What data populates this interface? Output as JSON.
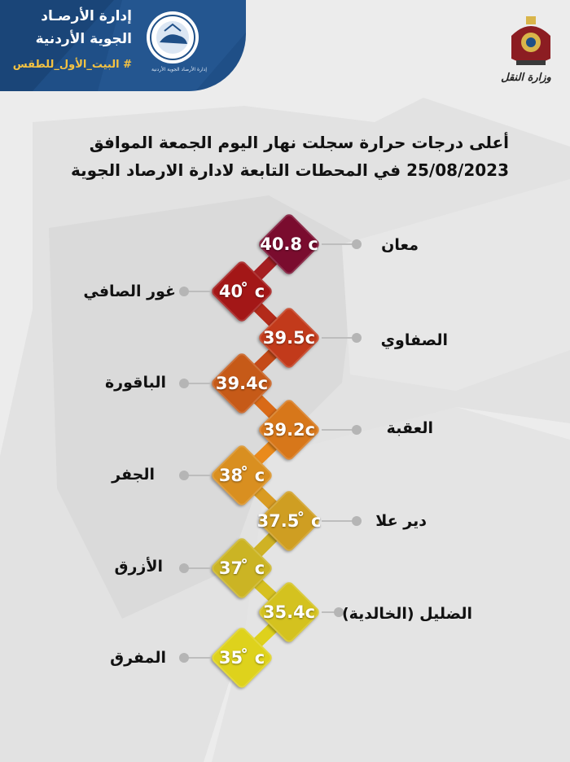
{
  "header": {
    "dept_line1": "إدارة الأرصـاد",
    "dept_line2": "الجوية الأردنية",
    "hashtag": "# البيت_الأول_للطقس",
    "logo_caption": "إدارة الأرصاد الجوية الأردنية"
  },
  "ministry": {
    "label": "وزارة النقل"
  },
  "title": {
    "line1": "أعلى درجات حرارة سجلت نهار اليوم الجمعة الموافق",
    "line2": "25/08/2023 في المحطات التابعة لادارة الارصاد الجوية"
  },
  "stations": [
    {
      "name": "معان",
      "temp": "40.8 c",
      "color": "#7a0c2e"
    },
    {
      "name": "غور الصافي",
      "temp": "40 ̊ c",
      "color": "#a31717"
    },
    {
      "name": "الصفاوي",
      "temp": "39.5c",
      "color": "#c23a1b"
    },
    {
      "name": "الباقورة",
      "temp": "39.4c",
      "color": "#c65a18"
    },
    {
      "name": "العقبة",
      "temp": "39.2c",
      "color": "#d7771a"
    },
    {
      "name": "الجفر",
      "temp": "38 ̊ c",
      "color": "#d98f20"
    },
    {
      "name": "دير علا",
      "temp": "37.5 ̊ c",
      "color": "#cf9e22"
    },
    {
      "name": "الأزرق",
      "temp": "37 ̊ c",
      "color": "#cbb424"
    },
    {
      "name": "الضليل (الخالدية)",
      "temp": "35.4c",
      "color": "#d4c21f"
    },
    {
      "name": "المفرق",
      "temp": "35 ̊ c",
      "color": "#ded21c"
    }
  ]
}
